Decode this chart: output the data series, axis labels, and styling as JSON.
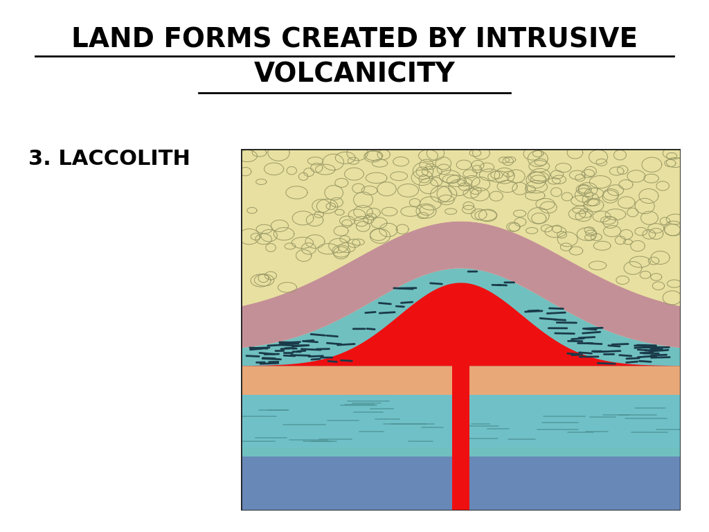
{
  "title_line1": "LAND FORMS CREATED BY INTRUSIVE",
  "title_line2": "VOLCANICITY",
  "subtitle": "3. LACCOLITH",
  "bg_color": "#ffffff",
  "title_fontsize": 28,
  "subtitle_fontsize": 22,
  "colors": {
    "sandy_top": "#e8e0a0",
    "pink_layer": "#c49098",
    "teal_layer": "#70c0c0",
    "magma_red": "#ee1010",
    "orange_layer": "#e8a878",
    "blue_layer": "#70c0c8",
    "deep_blue": "#6888b8",
    "border": "#222222"
  }
}
